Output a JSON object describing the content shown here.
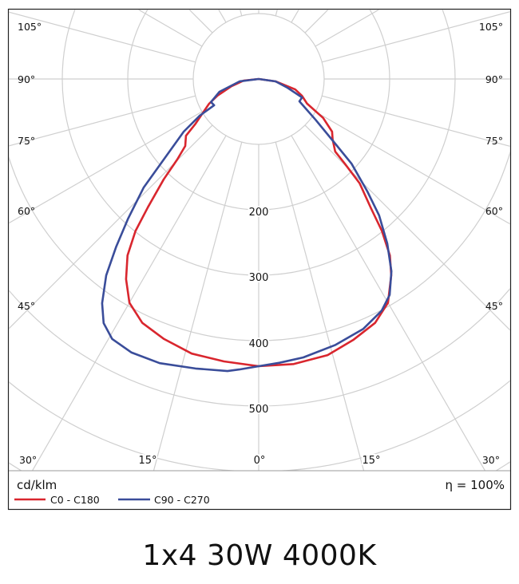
{
  "title": "1x4 30W 4000K",
  "chart_data": {
    "type": "polar",
    "unit_label": "cd/klm",
    "efficiency_label": "η = 100%",
    "radial_ticks": [
      200,
      300,
      400,
      500
    ],
    "radial_tick_labels": [
      "200",
      "300",
      "400",
      "500"
    ],
    "rings": [
      100,
      200,
      300,
      400,
      500,
      600,
      700,
      800
    ],
    "angle_step_deg": 15,
    "grid": true,
    "legend_position": "bottom-left",
    "angle_labels": {
      "left": [
        "105°",
        "90°",
        "75°",
        "60°",
        "45°",
        "30°"
      ],
      "right": [
        "105°",
        "90°",
        "75°",
        "60°",
        "45°",
        "30°"
      ],
      "bottom": [
        "15°",
        "0°",
        "15°",
        "30°"
      ]
    },
    "series": [
      {
        "name": "C0 - C180",
        "color": "#d9262e",
        "right_plane": "C0",
        "left_plane": "C180",
        "right": [
          [
            0,
            439
          ],
          [
            7,
            439
          ],
          [
            14,
            435
          ],
          [
            20,
            424
          ],
          [
            25.5,
            413
          ],
          [
            30,
            395
          ],
          [
            34,
            362
          ],
          [
            36.6,
            336
          ],
          [
            39,
            299
          ],
          [
            41,
            261
          ],
          [
            44,
            222
          ],
          [
            45.5,
            184
          ],
          [
            46.5,
            161
          ],
          [
            50.7,
            146
          ],
          [
            54.3,
            138
          ],
          [
            58.8,
            115
          ],
          [
            63,
            83
          ],
          [
            68.7,
            71
          ],
          [
            74,
            58
          ],
          [
            82,
            26
          ],
          [
            90,
            0
          ]
        ],
        "left": [
          [
            0,
            439
          ],
          [
            7,
            435
          ],
          [
            13.7,
            432
          ],
          [
            20,
            423
          ],
          [
            25.5,
            413
          ],
          [
            30,
            395
          ],
          [
            33.5,
            367
          ],
          [
            36.6,
            336
          ],
          [
            39,
            299
          ],
          [
            40.8,
            259
          ],
          [
            43.4,
            211
          ],
          [
            45.3,
            175
          ],
          [
            47.6,
            152
          ],
          [
            52,
            141
          ],
          [
            54.7,
            118
          ],
          [
            63.4,
            85
          ],
          [
            68,
            68
          ],
          [
            75,
            43
          ],
          [
            84,
            23
          ],
          [
            90,
            0
          ]
        ]
      },
      {
        "name": "C90 - C270",
        "color": "#3a4d9a",
        "right_plane": "C90",
        "left_plane": "C270",
        "right": [
          [
            0,
            439
          ],
          [
            4.2,
            435
          ],
          [
            9.1,
            431
          ],
          [
            16.1,
            423
          ],
          [
            22.7,
            414
          ],
          [
            27.9,
            401
          ],
          [
            31.2,
            386
          ],
          [
            34.6,
            357
          ],
          [
            38,
            319
          ],
          [
            41.4,
            278
          ],
          [
            44,
            239
          ],
          [
            47.6,
            192
          ],
          [
            49.8,
            153
          ],
          [
            54.3,
            107
          ],
          [
            61.2,
            71
          ],
          [
            66.9,
            72
          ],
          [
            73,
            46
          ],
          [
            82,
            26
          ],
          [
            90,
            0
          ]
        ],
        "left": [
          [
            0,
            439
          ],
          [
            3.8,
            445
          ],
          [
            6.1,
            449
          ],
          [
            12.3,
            453
          ],
          [
            19.2,
            460
          ],
          [
            24.9,
            461
          ],
          [
            29.4,
            456
          ],
          [
            32.4,
            442
          ],
          [
            34.9,
            418
          ],
          [
            37.8,
            380
          ],
          [
            40.3,
            337
          ],
          [
            43,
            293
          ],
          [
            46.6,
            242
          ],
          [
            49.7,
            190
          ],
          [
            54.9,
            140
          ],
          [
            58.1,
            106
          ],
          [
            59.5,
            79
          ],
          [
            64.2,
            81
          ],
          [
            71.9,
            63
          ],
          [
            82.9,
            29
          ],
          [
            90,
            0
          ]
        ]
      }
    ]
  }
}
